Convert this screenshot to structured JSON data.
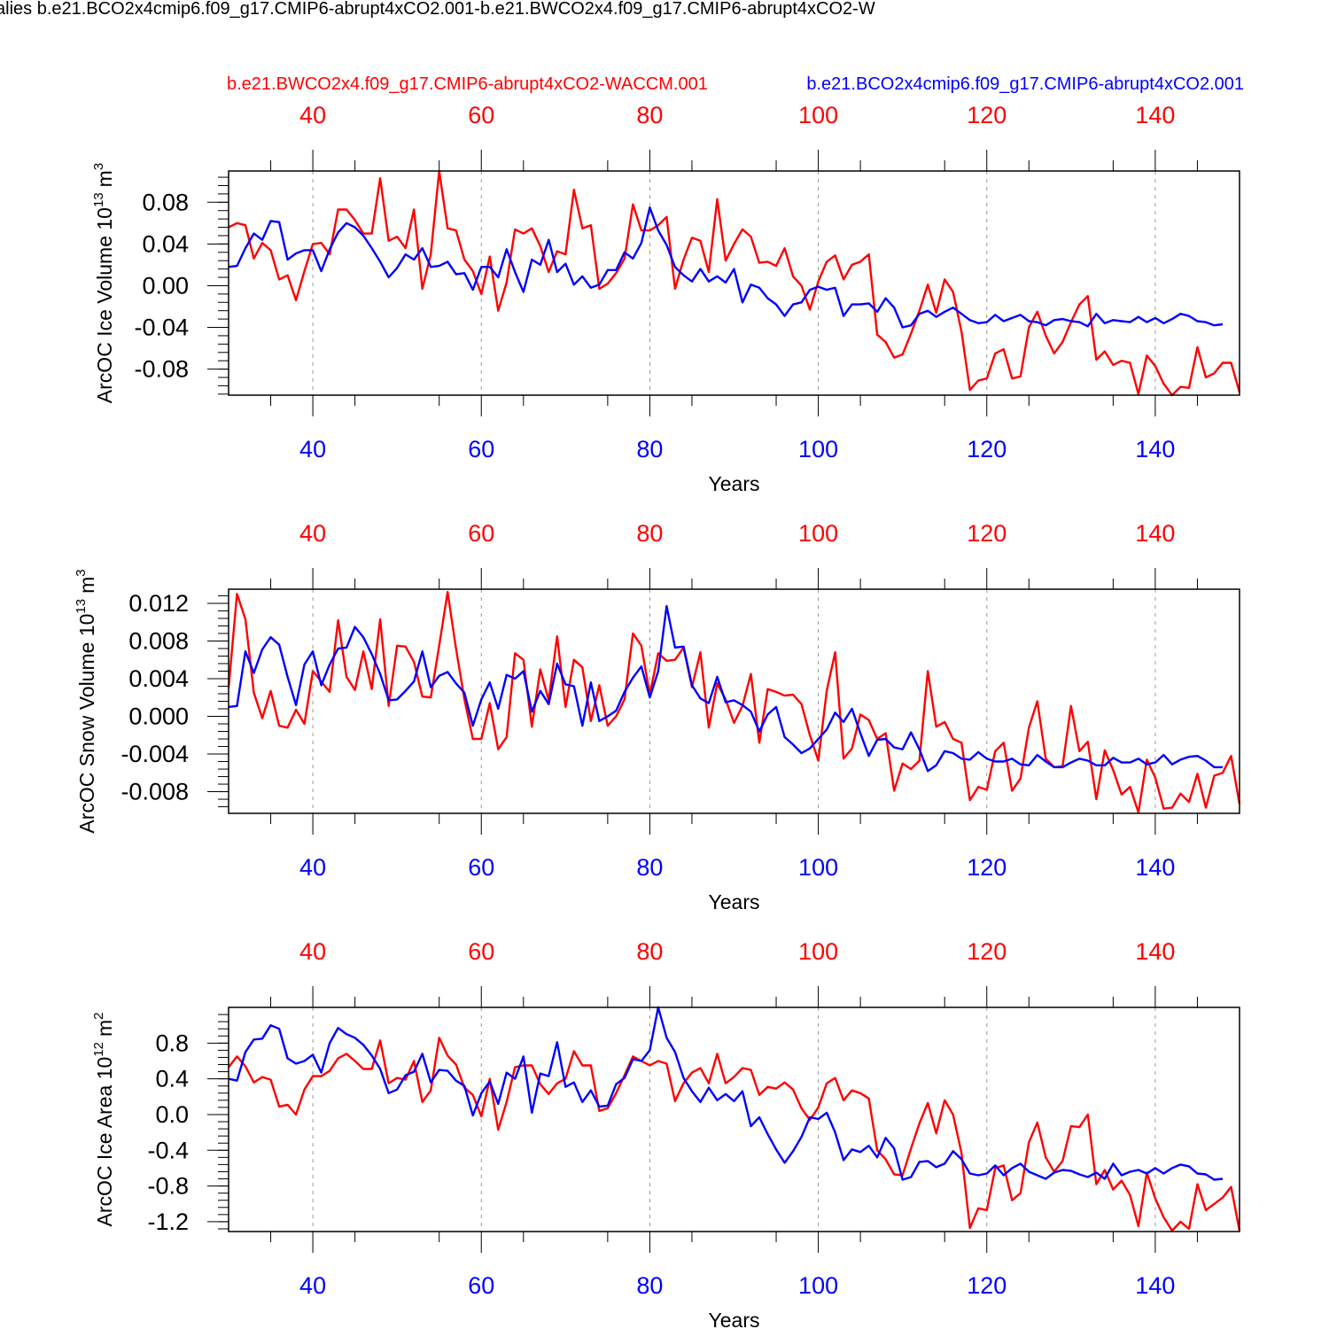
{
  "figure": {
    "title": "alies b.e21.BCO2x4cmip6.f09_g17.CMIP6-abrupt4xCO2.001-b.e21.BWCO2x4.f09_g17.CMIP6-abrupt4xCO2-W",
    "left_label": "b.e21.BWCO2x4.f09_g17.CMIP6-abrupt4xCO2-WACCM.001",
    "right_label": "b.e21.BCO2x4cmip6.f09_g17.CMIP6-abrupt4xCO2.001",
    "colors": {
      "red_series": "#ff0000",
      "blue_series": "#0000ff",
      "axis": "#000000",
      "grid": "#999999"
    }
  },
  "chart_data": [
    {
      "type": "line",
      "title": "",
      "xlabel": "Years",
      "ylabel": "ArcOC Ice Volume",
      "ylabel_exp": "13",
      "ylabel_unit": "m",
      "ylabel_unit_exp": "3",
      "xlim": [
        30,
        150
      ],
      "ylim": [
        -0.105,
        0.11
      ],
      "x_ticks": [
        40,
        60,
        80,
        100,
        120,
        140
      ],
      "x_tick_labels": [
        "40",
        "60",
        "80",
        "100",
        "120",
        "140"
      ],
      "y_ticks": [
        0.08,
        0.04,
        0.0,
        -0.04,
        -0.08
      ],
      "y_tick_labels": [
        "0.08",
        "0.04",
        "0.00",
        "-0.04",
        "-0.08"
      ],
      "y_minor_step": 0.008,
      "grid": "vertical dashed at major x ticks",
      "x_start": 30,
      "series": [
        {
          "color": "#ff0000",
          "values": [
            0.056,
            0.06,
            0.058,
            0.026,
            0.041,
            0.034,
            0.006,
            0.01,
            -0.014,
            0.014,
            0.04,
            0.041,
            0.03,
            0.073,
            0.073,
            0.063,
            0.05,
            0.05,
            0.103,
            0.043,
            0.047,
            0.036,
            0.073,
            -0.003,
            0.03,
            0.11,
            0.055,
            0.053,
            0.025,
            0.014,
            -0.008,
            0.028,
            -0.024,
            0.003,
            0.054,
            0.05,
            0.055,
            0.038,
            0.013,
            0.033,
            0.03,
            0.092,
            0.055,
            0.058,
            -0.003,
            0.002,
            0.012,
            0.026,
            0.078,
            0.053,
            0.053,
            0.058,
            0.066,
            -0.003,
            0.025,
            0.046,
            0.043,
            0.013,
            0.083,
            0.024,
            0.04,
            0.054,
            0.047,
            0.022,
            0.023,
            0.019,
            0.036,
            0.009,
            0.0,
            -0.023,
            0.004,
            0.023,
            0.029,
            0.006,
            0.02,
            0.023,
            0.03,
            -0.047,
            -0.054,
            -0.069,
            -0.066,
            -0.046,
            -0.024,
            0.001,
            -0.026,
            0.006,
            -0.006,
            -0.044,
            -0.1,
            -0.091,
            -0.089,
            -0.065,
            -0.061,
            -0.089,
            -0.087,
            -0.04,
            -0.025,
            -0.048,
            -0.065,
            -0.054,
            -0.035,
            -0.018,
            -0.01,
            -0.071,
            -0.063,
            -0.076,
            -0.072,
            -0.074,
            -0.104,
            -0.067,
            -0.077,
            -0.094,
            -0.105,
            -0.097,
            -0.098,
            -0.059,
            -0.088,
            -0.084,
            -0.074,
            -0.074,
            -0.102
          ]
        },
        {
          "color": "#0000ff",
          "values": [
            0.018,
            0.019,
            0.036,
            0.05,
            0.044,
            0.062,
            0.061,
            0.025,
            0.031,
            0.034,
            0.034,
            0.014,
            0.035,
            0.051,
            0.06,
            0.056,
            0.048,
            0.036,
            0.023,
            0.008,
            0.017,
            0.03,
            0.025,
            0.036,
            0.018,
            0.019,
            0.023,
            0.011,
            0.012,
            -0.004,
            0.018,
            0.018,
            0.008,
            0.035,
            0.013,
            -0.006,
            0.025,
            0.02,
            0.044,
            0.013,
            0.021,
            0.001,
            0.009,
            -0.002,
            0.001,
            0.015,
            0.015,
            0.032,
            0.026,
            0.041,
            0.075,
            0.053,
            0.039,
            0.018,
            0.01,
            0.004,
            0.016,
            0.004,
            0.009,
            0.003,
            0.016,
            -0.016,
            0.001,
            -0.002,
            -0.012,
            -0.018,
            -0.029,
            -0.018,
            -0.016,
            -0.004,
            -0.001,
            -0.004,
            -0.002,
            -0.029,
            -0.018,
            -0.018,
            -0.017,
            -0.025,
            -0.012,
            -0.021,
            -0.04,
            -0.038,
            -0.027,
            -0.024,
            -0.03,
            -0.025,
            -0.021,
            -0.027,
            -0.033,
            -0.036,
            -0.035,
            -0.028,
            -0.034,
            -0.031,
            -0.028,
            -0.034,
            -0.035,
            -0.038,
            -0.033,
            -0.032,
            -0.034,
            -0.035,
            -0.039,
            -0.027,
            -0.036,
            -0.033,
            -0.034,
            -0.035,
            -0.03,
            -0.035,
            -0.031,
            -0.036,
            -0.032,
            -0.027,
            -0.029,
            -0.034,
            -0.035,
            -0.038,
            -0.037
          ]
        }
      ]
    },
    {
      "type": "line",
      "title": "",
      "xlabel": "Years",
      "ylabel": "ArcOC Snow Volume",
      "ylabel_exp": "13",
      "ylabel_unit": "m",
      "ylabel_unit_exp": "3",
      "xlim": [
        30,
        150
      ],
      "ylim": [
        -0.0103,
        0.0135
      ],
      "x_ticks": [
        40,
        60,
        80,
        100,
        120,
        140
      ],
      "x_tick_labels": [
        "40",
        "60",
        "80",
        "100",
        "120",
        "140"
      ],
      "y_ticks": [
        0.012,
        0.008,
        0.004,
        0.0,
        -0.004,
        -0.008
      ],
      "y_tick_labels": [
        "0.012",
        "0.008",
        "0.004",
        "0.000",
        "-0.004",
        "-0.008"
      ],
      "y_minor_step": 0.0008,
      "grid": "vertical dashed at major x ticks",
      "x_start": 30,
      "series": [
        {
          "color": "#ff0000",
          "values": [
            0.003,
            0.013,
            0.0103,
            0.0025,
            -0.0002,
            0.0027,
            -0.001,
            -0.0012,
            0.0007,
            -0.0008,
            0.0048,
            0.0037,
            0.0026,
            0.0102,
            0.0042,
            0.0028,
            0.0069,
            0.0029,
            0.0103,
            0.0011,
            0.0075,
            0.0074,
            0.0058,
            0.0021,
            0.002,
            0.0075,
            0.0132,
            0.0072,
            0.0018,
            -0.0024,
            -0.0024,
            0.0014,
            -0.0035,
            -0.0022,
            0.0067,
            0.006,
            -0.0011,
            0.005,
            0.0017,
            0.0085,
            0.001,
            0.006,
            0.0052,
            -0.0005,
            0.0033,
            -0.001,
            0.0,
            0.0018,
            0.0088,
            0.0075,
            0.0023,
            0.0067,
            0.0059,
            0.006,
            0.0073,
            0.0031,
            0.0068,
            -0.0012,
            0.0035,
            0.0018,
            -0.0007,
            0.0011,
            0.0045,
            -0.0028,
            0.0029,
            0.0026,
            0.0022,
            0.0023,
            0.0013,
            -0.002,
            -0.0047,
            0.0027,
            0.0068,
            -0.0045,
            -0.0034,
            0.0002,
            -0.0004,
            -0.0024,
            -0.0018,
            -0.0079,
            -0.005,
            -0.0056,
            -0.0047,
            0.0048,
            -0.0011,
            -0.0006,
            -0.0024,
            -0.0028,
            -0.0089,
            -0.0075,
            -0.0078,
            -0.0037,
            -0.0028,
            -0.0079,
            -0.0066,
            -0.0012,
            0.0016,
            -0.0045,
            -0.0054,
            -0.0053,
            0.0011,
            -0.0037,
            -0.0027,
            -0.0088,
            -0.0036,
            -0.0057,
            -0.0083,
            -0.0075,
            -0.0102,
            -0.0046,
            -0.0065,
            -0.0098,
            -0.0097,
            -0.0082,
            -0.0091,
            -0.0061,
            -0.0097,
            -0.0063,
            -0.006,
            -0.0042,
            -0.0093
          ]
        },
        {
          "color": "#0000ff",
          "values": [
            0.001,
            0.0011,
            0.0069,
            0.0046,
            0.0071,
            0.0084,
            0.0076,
            0.0042,
            0.0012,
            0.0055,
            0.0069,
            0.0033,
            0.0055,
            0.0072,
            0.0073,
            0.0095,
            0.0084,
            0.0066,
            0.0045,
            0.0017,
            0.0018,
            0.0027,
            0.0037,
            0.0069,
            0.0031,
            0.0043,
            0.0047,
            0.0035,
            0.0025,
            -0.001,
            0.0018,
            0.0036,
            0.0008,
            0.0044,
            0.004,
            0.0048,
            0.0005,
            0.0027,
            0.0013,
            0.0056,
            0.0034,
            0.0032,
            -0.001,
            0.0036,
            -0.0005,
            0.0,
            0.0006,
            0.0026,
            0.0041,
            0.0053,
            0.002,
            0.0048,
            0.0117,
            0.0073,
            0.0074,
            0.0033,
            0.0019,
            0.0014,
            0.0042,
            0.0015,
            0.0017,
            0.0012,
            0.0005,
            -0.0016,
            0.0002,
            0.001,
            -0.0022,
            -0.003,
            -0.0039,
            -0.0034,
            -0.0024,
            -0.0014,
            0.0004,
            -0.0006,
            0.0008,
            -0.0018,
            -0.0042,
            -0.0025,
            -0.0024,
            -0.0033,
            -0.0035,
            -0.0017,
            -0.0035,
            -0.0058,
            -0.0052,
            -0.0037,
            -0.0039,
            -0.0045,
            -0.0046,
            -0.0038,
            -0.0045,
            -0.0048,
            -0.0048,
            -0.0045,
            -0.0051,
            -0.0052,
            -0.0041,
            -0.0048,
            -0.0054,
            -0.0054,
            -0.0049,
            -0.0045,
            -0.0047,
            -0.0052,
            -0.0052,
            -0.0044,
            -0.0049,
            -0.0049,
            -0.0045,
            -0.0051,
            -0.0049,
            -0.0041,
            -0.0051,
            -0.0046,
            -0.0043,
            -0.0042,
            -0.0047,
            -0.0054,
            -0.0054
          ]
        }
      ]
    },
    {
      "type": "line",
      "title": "",
      "xlabel": "Years",
      "ylabel": "ArcOC Ice Area",
      "ylabel_exp": "12",
      "ylabel_unit": "m",
      "ylabel_unit_exp": "2",
      "xlim": [
        30,
        150
      ],
      "ylim": [
        -1.31,
        1.2
      ],
      "x_ticks": [
        40,
        60,
        80,
        100,
        120,
        140
      ],
      "x_tick_labels": [
        "40",
        "60",
        "80",
        "100",
        "120",
        "140"
      ],
      "y_ticks": [
        0.8,
        0.4,
        0.0,
        -0.4,
        -0.8,
        -1.2
      ],
      "y_tick_labels": [
        "0.8",
        "0.4",
        "0.0",
        "-0.4",
        "-0.8",
        "-1.2"
      ],
      "y_minor_step": 0.08,
      "grid": "vertical dashed at major x ticks",
      "x_start": 30,
      "series": [
        {
          "color": "#ff0000",
          "values": [
            0.53,
            0.65,
            0.54,
            0.36,
            0.42,
            0.39,
            0.09,
            0.11,
            0.0,
            0.28,
            0.43,
            0.43,
            0.49,
            0.63,
            0.68,
            0.6,
            0.51,
            0.51,
            0.83,
            0.35,
            0.41,
            0.39,
            0.6,
            0.14,
            0.27,
            0.86,
            0.66,
            0.56,
            0.3,
            0.22,
            -0.02,
            0.4,
            -0.17,
            0.14,
            0.53,
            0.55,
            0.55,
            0.34,
            0.23,
            0.35,
            0.4,
            0.71,
            0.55,
            0.55,
            0.04,
            0.07,
            0.24,
            0.44,
            0.65,
            0.6,
            0.55,
            0.6,
            0.57,
            0.15,
            0.35,
            0.47,
            0.52,
            0.35,
            0.68,
            0.35,
            0.42,
            0.52,
            0.5,
            0.22,
            0.31,
            0.29,
            0.36,
            0.28,
            0.07,
            -0.06,
            0.08,
            0.35,
            0.41,
            0.16,
            0.27,
            0.24,
            0.18,
            -0.4,
            -0.5,
            -0.67,
            -0.68,
            -0.38,
            -0.1,
            0.13,
            -0.21,
            0.16,
            0.0,
            -0.43,
            -1.27,
            -1.05,
            -1.07,
            -0.6,
            -0.57,
            -0.96,
            -0.88,
            -0.31,
            -0.09,
            -0.48,
            -0.64,
            -0.52,
            -0.13,
            -0.14,
            0.0,
            -0.78,
            -0.62,
            -0.84,
            -0.74,
            -0.9,
            -1.25,
            -0.65,
            -0.94,
            -1.15,
            -1.3,
            -1.2,
            -1.28,
            -0.78,
            -1.07,
            -1.0,
            -0.93,
            -0.81,
            -1.3
          ]
        },
        {
          "color": "#0000ff",
          "values": [
            0.4,
            0.38,
            0.7,
            0.84,
            0.85,
            1.0,
            0.96,
            0.63,
            0.57,
            0.6,
            0.67,
            0.47,
            0.8,
            0.97,
            0.9,
            0.86,
            0.78,
            0.66,
            0.51,
            0.24,
            0.28,
            0.44,
            0.48,
            0.68,
            0.36,
            0.5,
            0.49,
            0.38,
            0.32,
            -0.01,
            0.24,
            0.37,
            0.12,
            0.47,
            0.4,
            0.65,
            0.02,
            0.46,
            0.43,
            0.81,
            0.31,
            0.36,
            0.14,
            0.27,
            0.09,
            0.1,
            0.34,
            0.41,
            0.62,
            0.6,
            0.72,
            1.2,
            0.86,
            0.7,
            0.41,
            0.26,
            0.14,
            0.3,
            0.16,
            0.23,
            0.15,
            0.26,
            -0.13,
            -0.03,
            -0.22,
            -0.39,
            -0.54,
            -0.41,
            -0.25,
            -0.03,
            -0.05,
            0.02,
            -0.2,
            -0.51,
            -0.39,
            -0.42,
            -0.35,
            -0.48,
            -0.26,
            -0.38,
            -0.73,
            -0.7,
            -0.53,
            -0.52,
            -0.59,
            -0.55,
            -0.41,
            -0.5,
            -0.66,
            -0.68,
            -0.66,
            -0.57,
            -0.68,
            -0.6,
            -0.55,
            -0.64,
            -0.68,
            -0.72,
            -0.65,
            -0.62,
            -0.63,
            -0.67,
            -0.7,
            -0.65,
            -0.72,
            -0.55,
            -0.68,
            -0.64,
            -0.62,
            -0.66,
            -0.6,
            -0.66,
            -0.6,
            -0.56,
            -0.58,
            -0.66,
            -0.67,
            -0.73,
            -0.72
          ]
        }
      ]
    }
  ]
}
